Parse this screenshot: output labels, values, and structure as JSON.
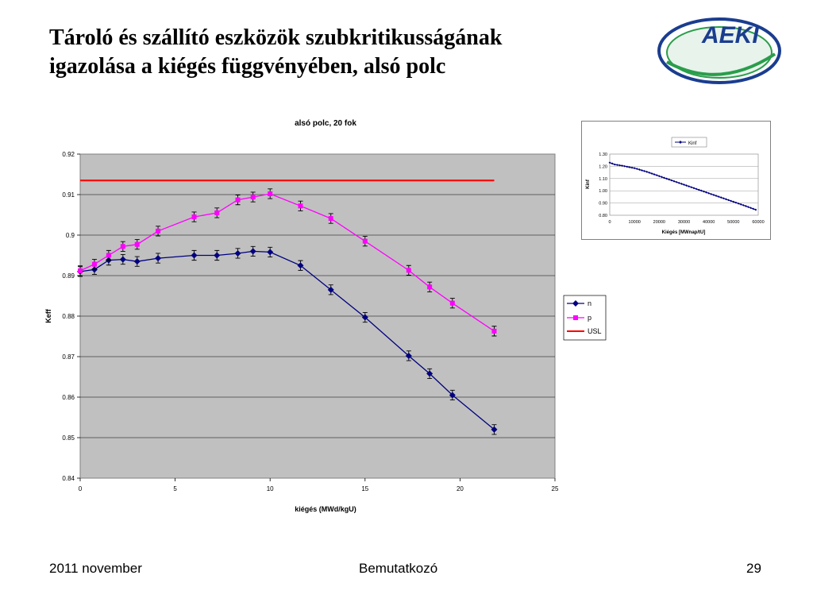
{
  "slide": {
    "title_lines": [
      "Tároló és szállító eszközök szubkritikusságának",
      "igazolása a kiégés függvényében, alsó polc"
    ],
    "logo_text": "AEKI",
    "footer": {
      "date": "2011 november",
      "center": "Bemutatkozó",
      "page": "29"
    }
  },
  "colors": {
    "plot_bg": "#c0c0c0",
    "n": "#000080",
    "p": "#ff00ff",
    "usl": "#ff0000",
    "logo_blue": "#1a3d8f",
    "logo_green": "#2a9d4a"
  },
  "chart_data": [
    {
      "type": "line",
      "title": "alsó polc, 20 fok",
      "xlabel": "kiégés (MWd/kgU)",
      "ylabel": "Keff",
      "xlim": [
        0,
        25
      ],
      "ylim": [
        0.84,
        0.92
      ],
      "xticks": [
        "0",
        "5",
        "10",
        "15",
        "20",
        "25"
      ],
      "yticks": [
        "0.84",
        "0.85",
        "0.86",
        "0.87",
        "0.88",
        "0.89",
        "0.9",
        "0.91",
        "0.92"
      ],
      "grid": true,
      "legend": "right",
      "series": [
        {
          "name": "n",
          "marker": "diamond",
          "x": [
            0,
            0.75,
            1.5,
            2.25,
            3,
            4.1,
            6,
            7.2,
            8.3,
            9.1,
            10,
            11.6,
            13.2,
            15,
            17.3,
            18.4,
            19.6,
            21.8
          ],
          "y": [
            0.891,
            0.8915,
            0.8938,
            0.894,
            0.8935,
            0.8943,
            0.895,
            0.895,
            0.8955,
            0.896,
            0.8958,
            0.8925,
            0.8865,
            0.8797,
            0.8702,
            0.8658,
            0.8605,
            0.852
          ],
          "err": 0.0012
        },
        {
          "name": "p",
          "marker": "square",
          "x": [
            0,
            0.75,
            1.5,
            2.25,
            3,
            4.1,
            6,
            7.2,
            8.3,
            9.1,
            10,
            11.6,
            13.2,
            15,
            17.3,
            18.4,
            19.6,
            21.8
          ],
          "y": [
            0.8912,
            0.8928,
            0.895,
            0.8972,
            0.8977,
            0.901,
            0.9045,
            0.9055,
            0.9087,
            0.9094,
            0.9102,
            0.9072,
            0.9041,
            0.8985,
            0.8913,
            0.8872,
            0.8832,
            0.8763
          ],
          "err": 0.0012
        },
        {
          "name": "USL",
          "x": [
            0,
            21.8
          ],
          "y": [
            0.9135,
            0.9135
          ]
        }
      ]
    },
    {
      "type": "line",
      "title": "",
      "xlabel": "Kiégés [MWnap/tU]",
      "ylabel": "Kinf",
      "xlim": [
        0,
        60000
      ],
      "ylim": [
        0.8,
        1.3
      ],
      "xticks": [
        "0",
        "10000",
        "20000",
        "30000",
        "40000",
        "50000",
        "60000"
      ],
      "yticks": [
        "0.80",
        "0.90",
        "1.00",
        "1.10",
        "1.20",
        "1.30"
      ],
      "legend": "top",
      "series": [
        {
          "name": "Kinf",
          "marker": "diamond",
          "x": [
            0,
            2000,
            5000,
            10000,
            15000,
            20000,
            25000,
            30000,
            35000,
            40000,
            45000,
            50000,
            55000,
            59000
          ],
          "y": [
            1.23,
            1.215,
            1.205,
            1.185,
            1.155,
            1.12,
            1.085,
            1.05,
            1.015,
            0.98,
            0.945,
            0.91,
            0.875,
            0.845
          ]
        }
      ]
    }
  ]
}
